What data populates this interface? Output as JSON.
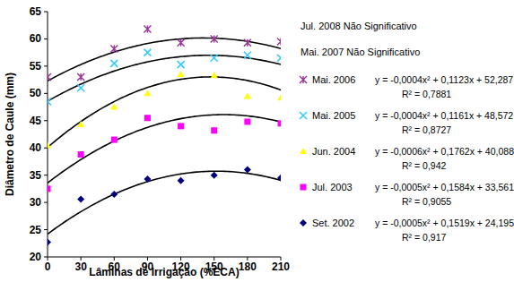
{
  "chart_data": {
    "type": "scatter",
    "x_label": "Lâminas de Irrigação (%ECA)",
    "y_label": "Diâmetro de Caule (mm)",
    "xlim": [
      0,
      210
    ],
    "xticks": [
      0,
      30,
      60,
      90,
      120,
      150,
      180,
      210
    ],
    "ylim": [
      20,
      65
    ],
    "yticks": [
      20,
      25,
      30,
      35,
      40,
      45,
      50,
      55,
      60,
      65
    ],
    "grid": false,
    "legend": "right",
    "annotations": [
      "Jul. 2008 Não Significativo",
      "Mai. 2007 Não Significativo"
    ],
    "x": [
      0,
      30,
      60,
      90,
      120,
      150,
      180,
      210
    ],
    "series": [
      {
        "name": "Mai. 2006",
        "color": "#993399",
        "marker": "star",
        "values": [
          53,
          53,
          58.2,
          61.8,
          59.3,
          60,
          59.3,
          59.5
        ],
        "fit": [
          -0.0004,
          0.1123,
          52.287
        ],
        "equation": "y = -0,0004x² + 0,1123x + 52,287",
        "r2_label": "R² = 0,7881"
      },
      {
        "name": "Mai. 2005",
        "color": "#33CCFF",
        "marker": "x",
        "values": [
          48.5,
          51,
          55.5,
          57.5,
          55.3,
          56.5,
          57,
          56.5
        ],
        "fit": [
          -0.0004,
          0.1161,
          48.572
        ],
        "equation": "y = -0,0004x² + 0,1161x + 48,572",
        "r2_label": "R² = 0,8727"
      },
      {
        "name": "Jun. 2004",
        "color": "#FFFF00",
        "marker": "triangle",
        "values": [
          40.5,
          44.3,
          47.5,
          50,
          53.5,
          53.3,
          49.5,
          49.2
        ],
        "fit": [
          -0.0006,
          0.1762,
          40.088
        ],
        "equation": "y = -0,0006x² + 0,1762x + 40,088",
        "r2_label": "R² = 0,942"
      },
      {
        "name": "Jul. 2003",
        "color": "#FF00FF",
        "marker": "square",
        "values": [
          32.5,
          38.8,
          41.5,
          45.5,
          44,
          43.2,
          44.8,
          44.5
        ],
        "fit": [
          -0.0005,
          0.1584,
          33.561
        ],
        "equation": "y = -0,0005x² + 0,1584x + 33,561",
        "r2_label": "R² = 0,9055"
      },
      {
        "name": "Set. 2002",
        "color": "#000080",
        "marker": "diamond",
        "values": [
          22.7,
          30.6,
          31.5,
          34.3,
          34,
          35,
          36,
          34.5
        ],
        "fit": [
          -0.0005,
          0.1519,
          24.195
        ],
        "equation": "y = -0,0005x² + 0,1519x + 24,195",
        "r2_label": "R² = 0,917"
      }
    ]
  }
}
